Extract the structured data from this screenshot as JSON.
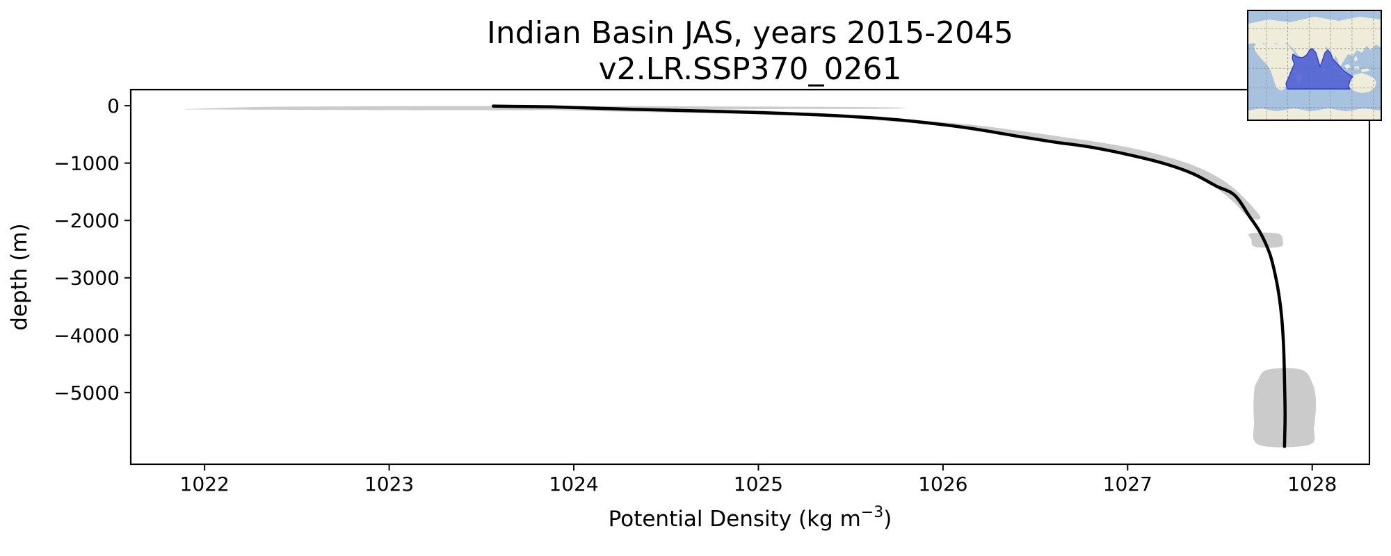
{
  "title": {
    "line1": "Indian Basin JAS, years 2015-2045",
    "line2": "v2.LR.SSP370_0261"
  },
  "chart_data": {
    "type": "line",
    "title": "Indian Basin JAS, years 2015-2045\nv2.LR.SSP370_0261",
    "xlabel": {
      "prefix": "Potential Density (kg m",
      "superscript": "−3",
      "suffix": ")"
    },
    "ylabel": "depth (m)",
    "xlim": [
      1021.6,
      1028.31
    ],
    "ylim": [
      -6250,
      280
    ],
    "grid": false,
    "legend_position": "none",
    "x_ticks": [
      {
        "value": 1022,
        "label": "1022"
      },
      {
        "value": 1023,
        "label": "1023"
      },
      {
        "value": 1024,
        "label": "1024"
      },
      {
        "value": 1025,
        "label": "1025"
      },
      {
        "value": 1026,
        "label": "1026"
      },
      {
        "value": 1027,
        "label": "1027"
      },
      {
        "value": 1028,
        "label": "1028"
      }
    ],
    "y_ticks": [
      {
        "value": 0,
        "label": "0"
      },
      {
        "value": -1000,
        "label": "−1000"
      },
      {
        "value": -2000,
        "label": "−2000"
      },
      {
        "value": -3000,
        "label": "−3000"
      },
      {
        "value": -4000,
        "label": "−4000"
      },
      {
        "value": -5000,
        "label": "−5000"
      }
    ],
    "line_color": "#000000",
    "line_width": 4.5,
    "envelope_color": "#cbcbcb",
    "series": [
      {
        "name": "ensemble mean potential density profile",
        "points": [
          [
            1023.57,
            -5
          ],
          [
            1023.58,
            -8
          ],
          [
            1023.75,
            -15
          ],
          [
            1023.9,
            -22
          ],
          [
            1024.3,
            -60
          ],
          [
            1024.7,
            -92
          ],
          [
            1025.0,
            -120
          ],
          [
            1025.35,
            -162
          ],
          [
            1025.7,
            -230
          ],
          [
            1026.0,
            -330
          ],
          [
            1026.2,
            -420
          ],
          [
            1026.4,
            -530
          ],
          [
            1026.6,
            -632
          ],
          [
            1026.8,
            -722
          ],
          [
            1027.0,
            -850
          ],
          [
            1027.2,
            -1010
          ],
          [
            1027.35,
            -1180
          ],
          [
            1027.48,
            -1400
          ],
          [
            1027.58,
            -1560
          ],
          [
            1027.66,
            -1930
          ],
          [
            1027.72,
            -2220
          ],
          [
            1027.77,
            -2580
          ],
          [
            1027.8,
            -2950
          ],
          [
            1027.82,
            -3300
          ],
          [
            1027.835,
            -3700
          ],
          [
            1027.845,
            -4200
          ],
          [
            1027.85,
            -4800
          ],
          [
            1027.853,
            -5400
          ],
          [
            1027.85,
            -5940
          ]
        ]
      }
    ],
    "envelope_patches": [
      {
        "name": "surface min-max sliver",
        "points": [
          [
            1021.9,
            -62
          ],
          [
            1022.3,
            -22
          ],
          [
            1022.9,
            -10
          ],
          [
            1023.6,
            -6
          ],
          [
            1024.3,
            -8
          ],
          [
            1024.9,
            -14
          ],
          [
            1025.45,
            -22
          ],
          [
            1025.78,
            -34
          ],
          [
            1025.7,
            -52
          ],
          [
            1025.3,
            -56
          ],
          [
            1024.8,
            -62
          ],
          [
            1024.2,
            -70
          ],
          [
            1023.6,
            -78
          ],
          [
            1023.0,
            -76
          ],
          [
            1022.5,
            -72
          ],
          [
            1022.1,
            -66
          ]
        ]
      },
      {
        "name": "pycnocline min-max band",
        "points": [
          [
            1023.58,
            -6
          ],
          [
            1024.2,
            -26
          ],
          [
            1024.8,
            -62
          ],
          [
            1025.2,
            -110
          ],
          [
            1025.6,
            -182
          ],
          [
            1025.9,
            -262
          ],
          [
            1026.15,
            -330
          ],
          [
            1026.4,
            -432
          ],
          [
            1026.65,
            -545
          ],
          [
            1026.9,
            -665
          ],
          [
            1027.1,
            -795
          ],
          [
            1027.3,
            -975
          ],
          [
            1027.45,
            -1175
          ],
          [
            1027.57,
            -1425
          ],
          [
            1027.66,
            -1705
          ],
          [
            1027.72,
            -1955
          ],
          [
            1027.66,
            -1950
          ],
          [
            1027.58,
            -1700
          ],
          [
            1027.5,
            -1480
          ],
          [
            1027.4,
            -1280
          ],
          [
            1027.28,
            -1100
          ],
          [
            1027.1,
            -920
          ],
          [
            1026.9,
            -770
          ],
          [
            1026.7,
            -660
          ],
          [
            1026.5,
            -560
          ],
          [
            1026.3,
            -470
          ],
          [
            1026.1,
            -390
          ],
          [
            1025.9,
            -320
          ],
          [
            1025.65,
            -255
          ],
          [
            1025.4,
            -200
          ],
          [
            1025.1,
            -160
          ],
          [
            1024.8,
            -135
          ],
          [
            1024.4,
            -110
          ],
          [
            1024.0,
            -85
          ],
          [
            1023.75,
            -45
          ],
          [
            1023.62,
            -18
          ]
        ]
      },
      {
        "name": "mid-depth spread patch near -2300 m",
        "points": [
          [
            1027.665,
            -2225
          ],
          [
            1027.81,
            -2225
          ],
          [
            1027.84,
            -2340
          ],
          [
            1027.825,
            -2460
          ],
          [
            1027.69,
            -2460
          ],
          [
            1027.67,
            -2330
          ]
        ]
      },
      {
        "name": "abyssal spread patch below -4600 m",
        "points": [
          [
            1027.76,
            -4600
          ],
          [
            1027.94,
            -4600
          ],
          [
            1028.0,
            -4830
          ],
          [
            1028.02,
            -5150
          ],
          [
            1028.01,
            -5600
          ],
          [
            1027.985,
            -5910
          ],
          [
            1027.71,
            -5910
          ],
          [
            1027.685,
            -5500
          ],
          [
            1027.685,
            -5000
          ],
          [
            1027.705,
            -4790
          ]
        ]
      }
    ]
  },
  "inset_map": {
    "region_name": "Indian Basin",
    "colors": {
      "ocean": "#a6c2de",
      "land": "#efecd9",
      "region_fill": "#4d5ed2",
      "region_edge": "#2c3ed0",
      "grid": "#8f8f8f",
      "border": "#000000"
    }
  }
}
